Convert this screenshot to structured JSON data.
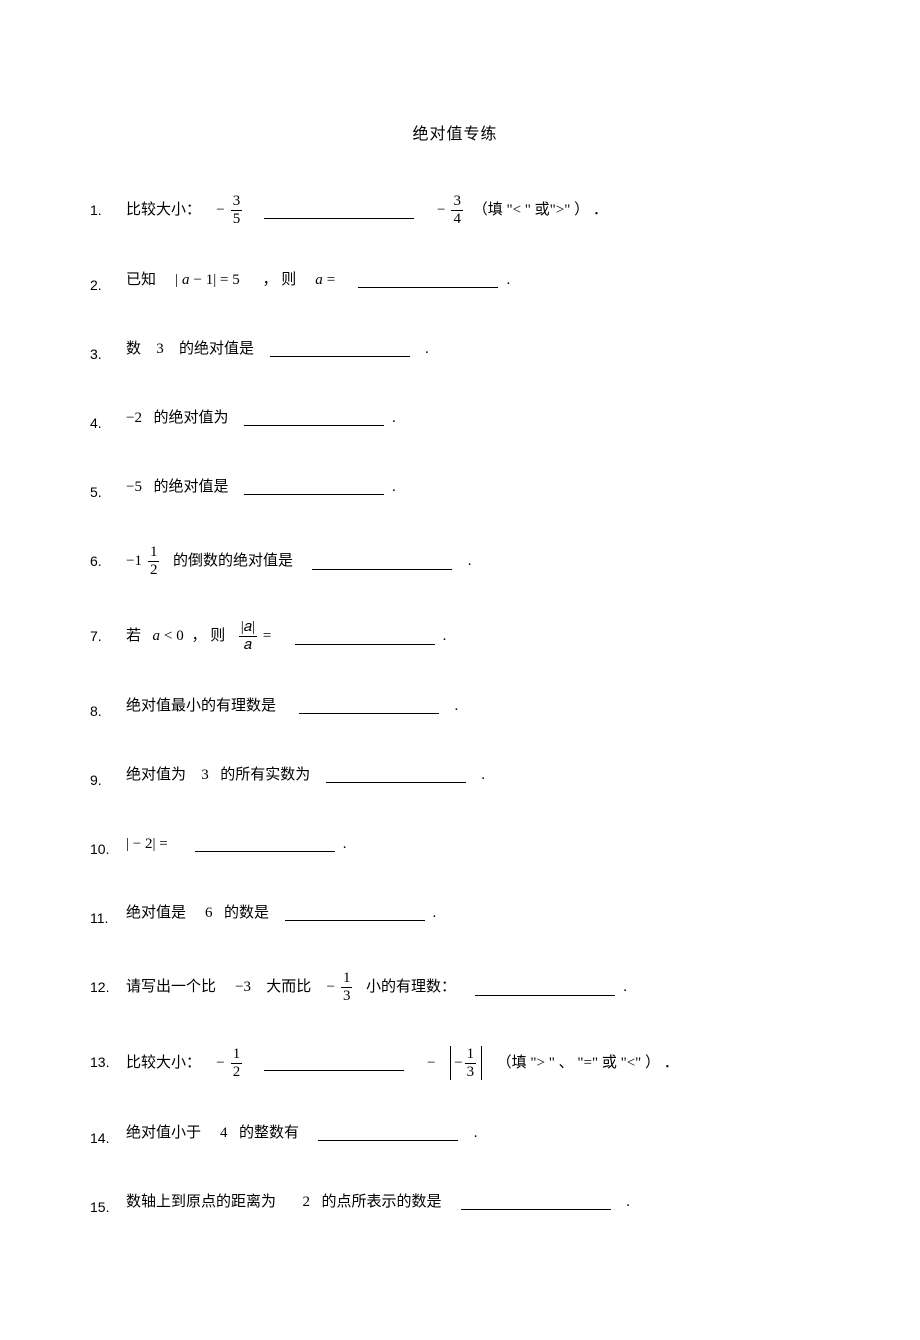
{
  "title": "绝对值专练",
  "items": [
    {
      "num": "1.",
      "parts": [
        "比较大小：   ",
        {
          "minus": "−"
        },
        {
          "frac": [
            "3",
            "5"
          ]
        },
        "  ",
        {
          "blank": 150
        },
        "   ",
        {
          "minus": "−"
        },
        {
          "frac": [
            "3",
            "4"
          ]
        },
        " （填 \"< \" 或\">\" ） ．"
      ]
    },
    {
      "num": "2.",
      "parts": [
        "已知    ",
        {
          "mathup": "|"
        },
        {
          "math": "a"
        },
        {
          "mathup": " − 1| = 5"
        },
        "     ， 则    ",
        {
          "math": "a"
        },
        {
          "mathup": " ="
        },
        "   ",
        {
          "blank": 140
        },
        "."
      ]
    },
    {
      "num": "3.",
      "parts": [
        "数   ",
        {
          "mathup": "3"
        },
        "   的绝对值是  ",
        {
          "blank": 140
        },
        "  ."
      ]
    },
    {
      "num": "4.",
      "parts": [
        {
          "mathup": "−2"
        },
        "  的绝对值为  ",
        {
          "blank": 140
        },
        "."
      ]
    },
    {
      "num": "5.",
      "parts": [
        {
          "mathup": "−5"
        },
        "  的绝对值是  ",
        {
          "blank": 140
        },
        "."
      ]
    },
    {
      "num": "6.",
      "parts": [
        {
          "mathup": "−1"
        },
        {
          "frac": [
            "1",
            "2"
          ]
        },
        "  的倒数的绝对值是   ",
        {
          "blank": 140
        },
        "  ."
      ]
    },
    {
      "num": "7.",
      "parts": [
        "若  ",
        {
          "math": "a"
        },
        {
          "mathup": " < 0"
        },
        " ， 则  ",
        {
          "frac": [
            "|𝑎|",
            "𝑎"
          ]
        },
        {
          "mathup": " ="
        },
        "   ",
        {
          "blank": 140
        },
        "."
      ]
    },
    {
      "num": "8.",
      "parts": [
        "绝对值最小的有理数是    ",
        {
          "blank": 140
        },
        "  ."
      ]
    },
    {
      "num": "9.",
      "parts": [
        "绝对值为   ",
        {
          "mathup": "3"
        },
        "  的所有实数为  ",
        {
          "blank": 140
        },
        "  ."
      ]
    },
    {
      "num": "10.",
      "parts": [
        {
          "mathup": "| − 2| ="
        },
        "    ",
        {
          "blank": 140
        },
        "."
      ]
    },
    {
      "num": "11.",
      "parts": [
        "绝对值是    ",
        {
          "mathup": "6"
        },
        "  的数是  ",
        {
          "blank": 140
        },
        "."
      ]
    },
    {
      "num": "12.",
      "parts": [
        "请写出一个比    ",
        {
          "mathup": "−3"
        },
        "   大而比   ",
        {
          "minus": "−"
        },
        {
          "frac": [
            "1",
            "3"
          ]
        },
        "  小的有理数：   ",
        {
          "blank": 140
        },
        "."
      ]
    },
    {
      "num": "13.",
      "parts": [
        "比较大小：   ",
        {
          "minus": "−"
        },
        {
          "frac": [
            "1",
            "2"
          ]
        },
        "  ",
        {
          "blank": 140
        },
        "   ",
        {
          "minus": "−"
        },
        " ",
        {
          "abs": [
            {
              "minus": "−"
            },
            {
              "frac": [
                "1",
                "3"
              ]
            }
          ]
        },
        "  （填 \"> \" 、 \"=\" 或 \"<\" ） ．"
      ]
    },
    {
      "num": "14.",
      "parts": [
        "绝对值小于    ",
        {
          "mathup": "4"
        },
        "  的整数有   ",
        {
          "blank": 140
        },
        "  ."
      ]
    },
    {
      "num": "15.",
      "parts": [
        "数轴上到原点的距离为      ",
        {
          "mathup": "2"
        },
        "  的点所表示的数是   ",
        {
          "blank": 150
        },
        "  ."
      ]
    }
  ]
}
